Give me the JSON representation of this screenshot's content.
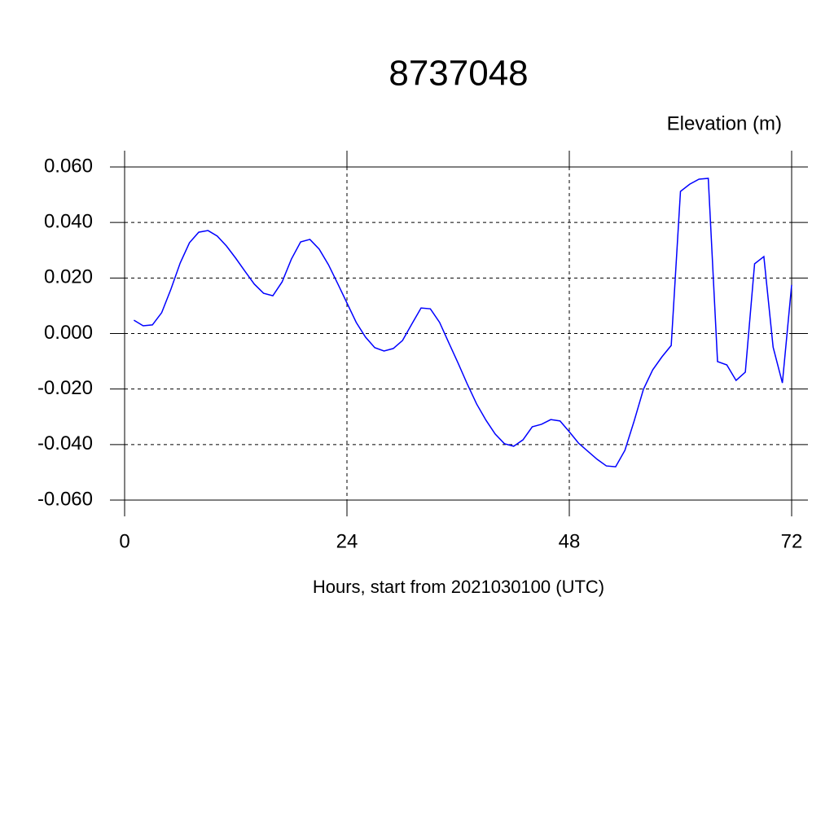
{
  "chart_data": {
    "type": "line",
    "title": "8737048",
    "ylabel": "Elevation (m)",
    "xlabel": "Hours, start from 2021030100 (UTC)",
    "x": [
      1,
      2,
      3,
      4,
      5,
      6,
      7,
      8,
      9,
      10,
      11,
      12,
      13,
      14,
      15,
      16,
      17,
      18,
      19,
      20,
      21,
      22,
      23,
      24,
      25,
      26,
      27,
      28,
      29,
      30,
      31,
      32,
      33,
      34,
      35,
      36,
      37,
      38,
      39,
      40,
      41,
      42,
      43,
      44,
      45,
      46,
      47,
      48,
      49,
      50,
      51,
      52,
      53,
      54,
      55,
      56,
      57,
      58,
      59,
      60,
      61,
      62,
      63,
      64,
      65,
      66,
      67,
      68,
      69,
      70,
      71,
      72
    ],
    "series": [
      {
        "name": "8737048",
        "color": "#0000ff",
        "values": [
          0.0048,
          0.0028,
          0.0031,
          0.0075,
          0.016,
          0.0254,
          0.0327,
          0.0365,
          0.0371,
          0.0351,
          0.0315,
          0.0271,
          0.0224,
          0.0178,
          0.0145,
          0.0136,
          0.0186,
          0.0268,
          0.033,
          0.0339,
          0.0304,
          0.0248,
          0.018,
          0.011,
          0.004,
          -0.0013,
          -0.0051,
          -0.0063,
          -0.0054,
          -0.0025,
          0.0034,
          0.0092,
          0.0089,
          0.004,
          -0.0034,
          -0.0107,
          -0.0183,
          -0.0254,
          -0.0312,
          -0.0362,
          -0.0397,
          -0.0406,
          -0.0383,
          -0.0336,
          -0.0327,
          -0.031,
          -0.0315,
          -0.0354,
          -0.0395,
          -0.0424,
          -0.0453,
          -0.0477,
          -0.048,
          -0.0421,
          -0.0315,
          -0.0201,
          -0.0131,
          -0.0084,
          -0.0043,
          0.0512,
          0.0538,
          0.0556,
          0.0559,
          -0.0101,
          -0.0113,
          -0.0169,
          -0.0139,
          0.0251,
          0.0277,
          -0.0049,
          -0.0178,
          0.0175
        ]
      }
    ],
    "xlim": [
      0,
      72
    ],
    "xticks": [
      0,
      24,
      48,
      72
    ],
    "ylim": [
      -0.06,
      0.06
    ],
    "yticks": [
      {
        "value": -0.06,
        "label": "-0.060"
      },
      {
        "value": -0.04,
        "label": "-0.040"
      },
      {
        "value": -0.02,
        "label": "-0.020"
      },
      {
        "value": 0,
        "label": "0.000"
      },
      {
        "value": 0.02,
        "label": "0.020"
      },
      {
        "value": 0.04,
        "label": "0.040"
      },
      {
        "value": 0.06,
        "label": "0.060"
      }
    ],
    "grid": true
  }
}
